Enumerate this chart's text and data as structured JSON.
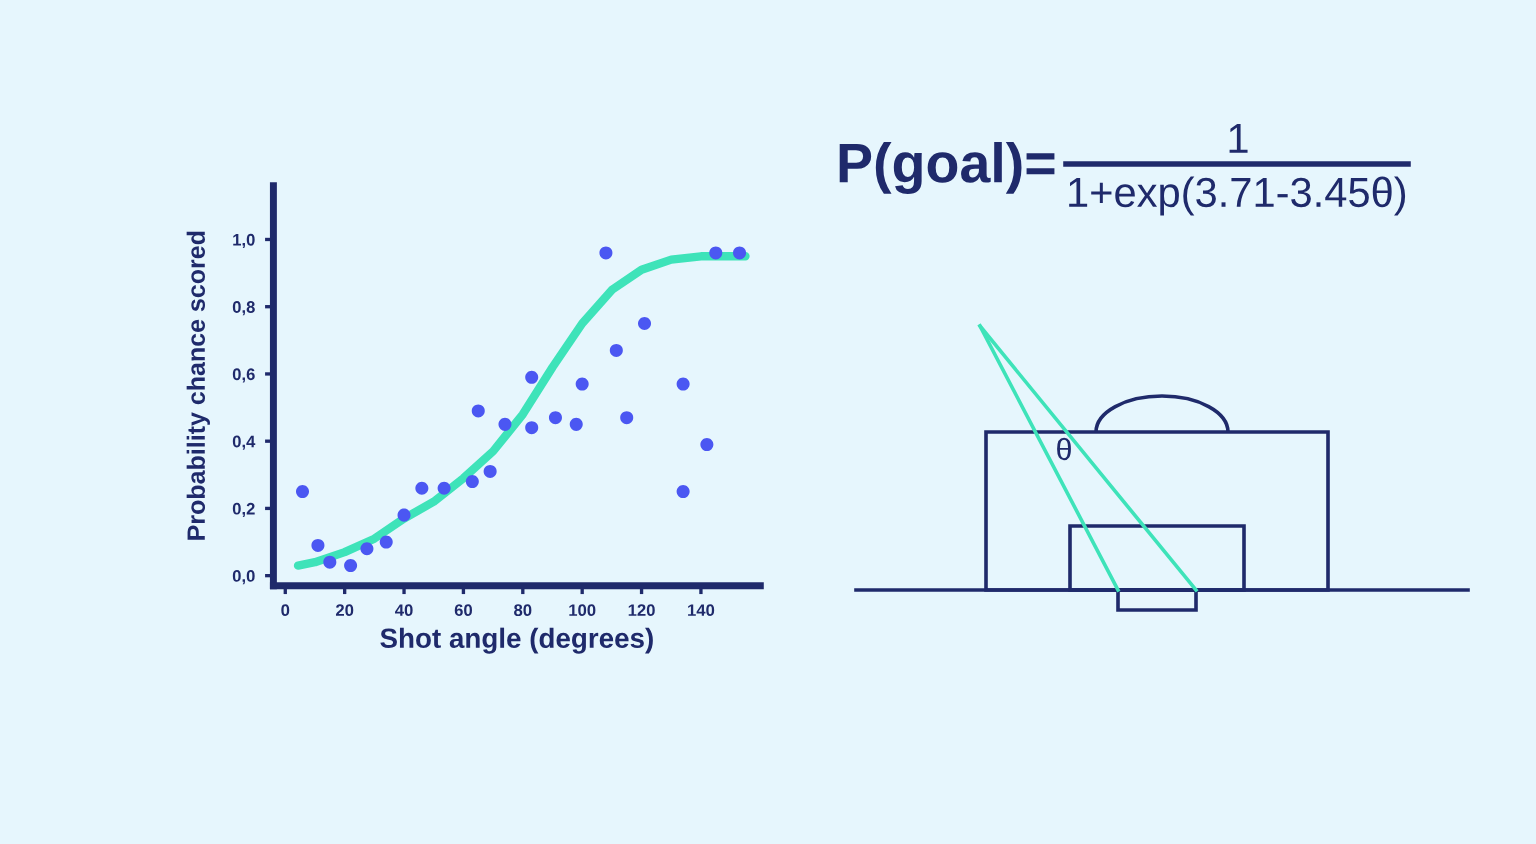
{
  "chart_data": {
    "type": "scatter",
    "xlabel": "Shot angle (degrees)",
    "ylabel": "Probability chance scored",
    "series": [
      {
        "color": "#4b57f2",
        "marker": "circle",
        "x": [
          5.8,
          11,
          15,
          22,
          27.5,
          34,
          40,
          46,
          53.5,
          63,
          65,
          69,
          74,
          83,
          83,
          91,
          98,
          100,
          108,
          111.5,
          115,
          121,
          134,
          134,
          142,
          145,
          153
        ],
        "values": [
          0.25,
          0.09,
          0.04,
          0.03,
          0.08,
          0.1,
          0.18,
          0.26,
          0.26,
          0.28,
          0.49,
          0.31,
          0.45,
          0.59,
          0.44,
          0.47,
          0.45,
          0.57,
          0.96,
          0.67,
          0.47,
          0.75,
          0.57,
          0.25,
          0.39,
          0.96,
          0.96
        ]
      },
      {
        "type": "line",
        "color": "#3ee3b9",
        "x": [
          4.3,
          10,
          20,
          30,
          40,
          50,
          60,
          70,
          80,
          90,
          100,
          110,
          120,
          130,
          140,
          155
        ],
        "values": [
          0.03,
          0.04,
          0.07,
          0.11,
          0.17,
          0.22,
          0.29,
          0.37,
          0.48,
          0.62,
          0.75,
          0.85,
          0.91,
          0.94,
          0.95,
          0.95
        ]
      }
    ],
    "xlim": [
      -4,
      160
    ],
    "ylim": [
      -0.03,
      1.16
    ],
    "xticks": [
      0,
      20,
      40,
      60,
      80,
      100,
      120,
      140
    ],
    "yticks": [
      {
        "value": 0,
        "label": "0,0"
      },
      {
        "value": 0.2,
        "label": "0,2"
      },
      {
        "value": 0.4,
        "label": "0,4"
      },
      {
        "value": 0.6,
        "label": "0,6"
      },
      {
        "value": 0.8,
        "label": "0,8"
      },
      {
        "value": 1.0,
        "label": "1,0"
      }
    ],
    "grid": false,
    "legend": false,
    "annotations": [
      "P(goal)=",
      "1",
      "1+exp(3.71-3.45θ)",
      "θ"
    ]
  }
}
